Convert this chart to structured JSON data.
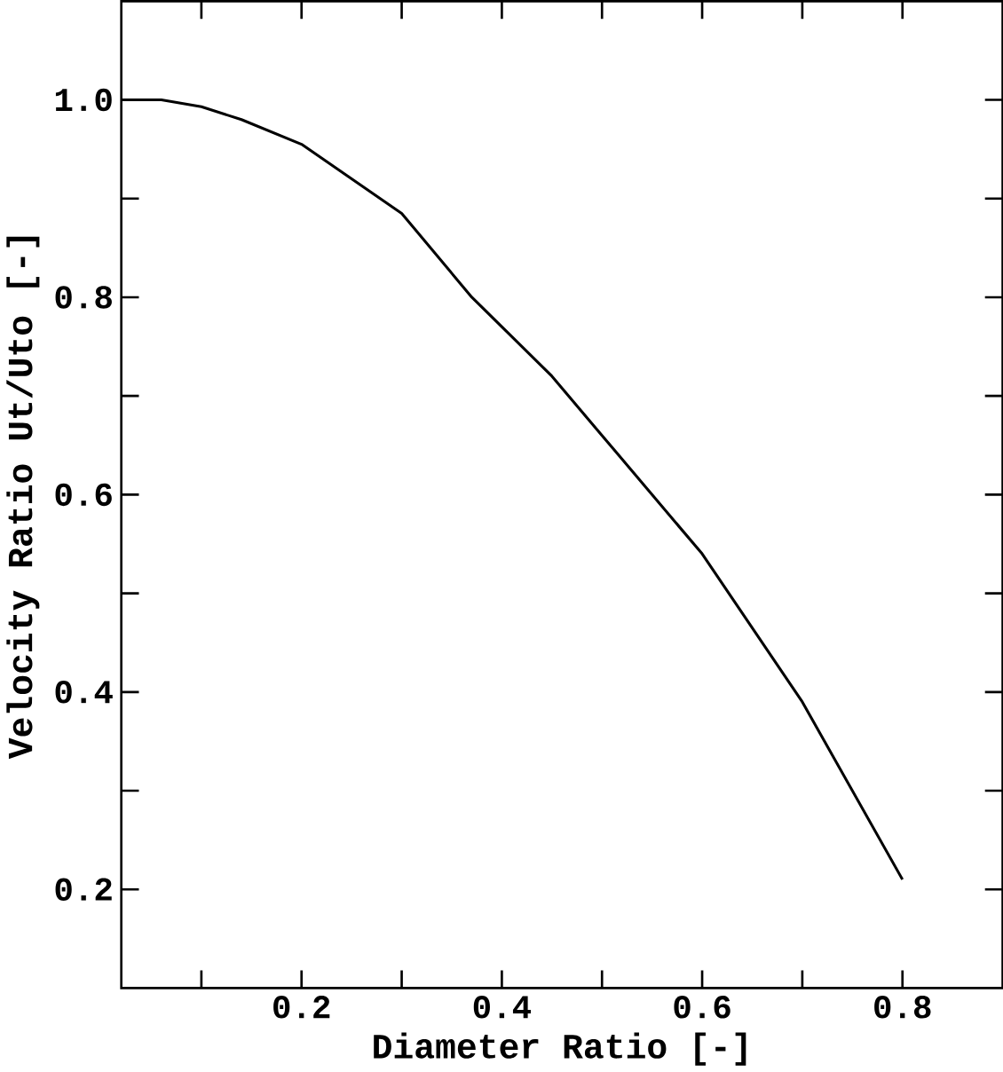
{
  "chart_data": {
    "type": "line",
    "xlabel": "Diameter Ratio [-]",
    "ylabel": "Velocity Ratio   Ut/Uto [-]",
    "x": [
      0.02,
      0.06,
      0.1,
      0.14,
      0.2,
      0.3,
      0.37,
      0.45,
      0.5,
      0.6,
      0.7,
      0.75,
      0.8
    ],
    "series": [
      {
        "color": "#000000",
        "values": [
          1.0,
          1.0,
          0.993,
          0.98,
          0.955,
          0.885,
          0.8,
          0.72,
          0.66,
          0.54,
          0.39,
          0.3,
          0.21
        ]
      }
    ],
    "xlim": [
      0.02,
      0.9
    ],
    "ylim": [
      0.1,
      1.1
    ],
    "xticks": [
      {
        "value": 0.1,
        "label": null
      },
      0.2,
      {
        "value": 0.3,
        "label": null
      },
      0.4,
      {
        "value": 0.5,
        "label": null
      },
      0.6,
      {
        "value": 0.7,
        "label": null
      },
      0.8
    ],
    "yticks": [
      {
        "value": 0.2,
        "label": "0.2"
      },
      {
        "value": 0.3,
        "label": null
      },
      0.4,
      {
        "value": 0.5,
        "label": null
      },
      0.6,
      {
        "value": 0.7,
        "label": null
      },
      0.8,
      {
        "value": 0.9,
        "label": null
      },
      {
        "value": 1.0,
        "label": "1.0"
      }
    ],
    "marker": "none",
    "line_style": "solid"
  }
}
